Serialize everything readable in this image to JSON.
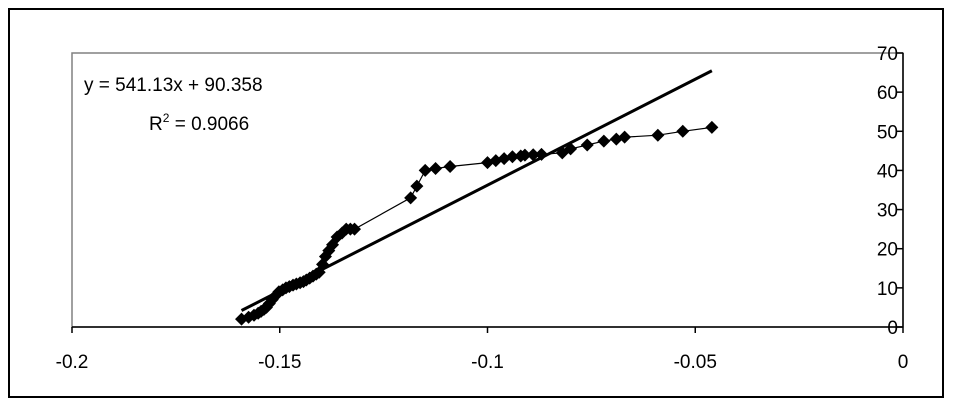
{
  "chart_data": {
    "type": "scatter",
    "title": "",
    "xlabel": "",
    "ylabel": "",
    "xlim": [
      -0.2,
      0
    ],
    "ylim": [
      0,
      70
    ],
    "x_ticks": [
      -0.2,
      -0.15,
      -0.1,
      -0.05,
      0
    ],
    "x_tick_labels": [
      "-0.2",
      "-0.15",
      "-0.1",
      "-0.05",
      "0"
    ],
    "y_ticks": [
      0,
      10,
      20,
      30,
      40,
      50,
      60,
      70
    ],
    "y_tick_labels": [
      "0",
      "10",
      "20",
      "30",
      "40",
      "50",
      "60",
      "70"
    ],
    "y_axis_side": "right",
    "grid": false,
    "legend": "none",
    "series": [
      {
        "marker": "diamond",
        "connected": true,
        "color": "#000000",
        "x": [
          -0.1592,
          -0.1575,
          -0.1562,
          -0.1552,
          -0.1545,
          -0.1538,
          -0.1532,
          -0.1525,
          -0.1518,
          -0.151,
          -0.1502,
          -0.1493,
          -0.1485,
          -0.1477,
          -0.1468,
          -0.146,
          -0.1451,
          -0.1443,
          -0.1436,
          -0.1428,
          -0.142,
          -0.1412,
          -0.1405,
          -0.1397,
          -0.139,
          -0.1382,
          -0.1373,
          -0.1362,
          -0.135,
          -0.134,
          -0.133,
          -0.132,
          -0.1185,
          -0.117,
          -0.115,
          -0.1125,
          -0.109,
          -0.1,
          -0.098,
          -0.096,
          -0.094,
          -0.092,
          -0.091,
          -0.089,
          -0.087,
          -0.082,
          -0.08,
          -0.076,
          -0.072,
          -0.069,
          -0.067,
          -0.059,
          -0.053,
          -0.046
        ],
        "y": [
          2,
          2.5,
          3,
          3.5,
          4,
          4.5,
          5,
          6,
          7,
          8,
          9,
          9.5,
          10,
          10.3,
          10.7,
          11,
          11.3,
          11.6,
          12,
          12.5,
          13,
          13.5,
          14,
          16,
          18,
          19.5,
          21,
          23,
          24,
          25,
          25,
          25,
          33,
          36,
          40,
          40.5,
          41,
          42,
          42.5,
          43,
          43.5,
          43.7,
          43.9,
          44,
          44.1,
          44.5,
          45.5,
          46.5,
          47.5,
          48,
          48.5,
          49,
          50,
          51
        ]
      }
    ],
    "trendline": {
      "type": "linear",
      "slope": 541.13,
      "intercept": 90.358,
      "x_range": [
        -0.1592,
        -0.046
      ],
      "equation_text": "y = 541.13x + 90.358",
      "r2_prefix": "R",
      "r2_exp": "2",
      "r2_value_text": " = 0.9066"
    }
  }
}
